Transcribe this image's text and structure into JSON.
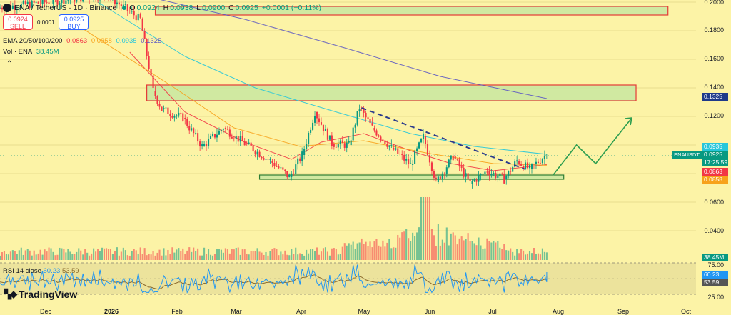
{
  "header": {
    "symbol": "ENA / TetherUS · 1D · Binance",
    "open_label": "O",
    "open": "0.0924",
    "high_label": "H",
    "high": "0.0938",
    "low_label": "L",
    "low": "0.0900",
    "close_label": "C",
    "close": "0.0925",
    "change": "+0.0001 (+0.11%)"
  },
  "trade": {
    "sell_price": "0.0924",
    "sell_label": "SELL",
    "spread": "0.0001",
    "buy_price": "0.0925",
    "buy_label": "BUY"
  },
  "ema": {
    "label": "EMA 20/50/100/200",
    "v20": "0.0863",
    "v50": "0.0858",
    "v100": "0.0935",
    "v200": "0.1325"
  },
  "vol": {
    "label": "Vol · ENA",
    "value": "38.45M"
  },
  "rsi": {
    "label": "RSI 14 close",
    "value": "60.23",
    "ma": "53.59"
  },
  "brand": {
    "name": "TradingView"
  },
  "price_axis": {
    "ticks": [
      "0.2000",
      "0.1800",
      "0.1600",
      "0.1400",
      "0.1200",
      "0.0600",
      "0.0400"
    ],
    "badges": {
      "ema100": "0.0935",
      "symbol": "ENAUSDT",
      "last": "0.0925",
      "countdown": "17:25:59",
      "ema20": "0.0863",
      "ema50": "0.0858",
      "vol": "38.45M"
    }
  },
  "rsi_axis": {
    "ticks": [
      "75.00",
      "25.00"
    ],
    "badge_rsi": "60.23",
    "badge_ma": "53.59"
  },
  "time_axis": [
    "Dec",
    "2026",
    "Feb",
    "Mar",
    "Apr",
    "May",
    "Jun",
    "Jul",
    "Aug",
    "Sep",
    "Oct"
  ],
  "colors": {
    "background": "#fcf3a6",
    "up": "#089981",
    "down": "#f23645",
    "ema20": "#f23645",
    "ema50": "#f7a21b",
    "ema100": "#26c6da",
    "ema200": "#5b56c4",
    "zone_fill": "#c8e6a0",
    "zone_border": "#e53935",
    "support_border": "#2e7d32",
    "trendline": "#2a3a8c",
    "projection": "#2e9e4f",
    "rsi_line": "#2196f3",
    "rsi_ma": "#8b6b2e"
  },
  "chart_data": {
    "type": "candlestick",
    "title": "ENA / TetherUS · 1D · Binance",
    "price_range": [
      0.03,
      0.2
    ],
    "x_range": [
      "2025-11-20",
      "2026-10-05"
    ],
    "key_points": [
      {
        "date": "2025-11-20",
        "price": 0.196
      },
      {
        "date": "2026-01-10",
        "price": 0.205
      },
      {
        "date": "2026-01-26",
        "price": 0.188
      },
      {
        "date": "2026-02-01",
        "price": 0.138
      },
      {
        "date": "2026-02-05",
        "price": 0.125
      },
      {
        "date": "2026-02-15",
        "price": 0.119
      },
      {
        "date": "2026-02-24",
        "price": 0.099
      },
      {
        "date": "2026-03-06",
        "price": 0.112
      },
      {
        "date": "2026-03-16",
        "price": 0.101
      },
      {
        "date": "2026-03-28",
        "price": 0.089
      },
      {
        "date": "2026-04-06",
        "price": 0.0775
      },
      {
        "date": "2026-04-12",
        "price": 0.093
      },
      {
        "date": "2026-04-18",
        "price": 0.123
      },
      {
        "date": "2026-04-26",
        "price": 0.101
      },
      {
        "date": "2026-05-04",
        "price": 0.1
      },
      {
        "date": "2026-05-09",
        "price": 0.126
      },
      {
        "date": "2026-05-15",
        "price": 0.112
      },
      {
        "date": "2026-05-24",
        "price": 0.098
      },
      {
        "date": "2026-06-02",
        "price": 0.086
      },
      {
        "date": "2026-06-08",
        "price": 0.106
      },
      {
        "date": "2026-06-14",
        "price": 0.074
      },
      {
        "date": "2026-06-22",
        "price": 0.092
      },
      {
        "date": "2026-06-30",
        "price": 0.073
      },
      {
        "date": "2026-07-08",
        "price": 0.082
      },
      {
        "date": "2026-07-16",
        "price": 0.076
      },
      {
        "date": "2026-07-22",
        "price": 0.089
      },
      {
        "date": "2026-07-28",
        "price": 0.083
      },
      {
        "date": "2026-08-04",
        "price": 0.0925
      }
    ],
    "ema_lines": {
      "ema20": [
        [
          "2026-01-20",
          0.165
        ],
        [
          "2026-02-15",
          0.123
        ],
        [
          "2026-03-15",
          0.102
        ],
        [
          "2026-04-06",
          0.09
        ],
        [
          "2026-04-20",
          0.102
        ],
        [
          "2026-05-10",
          0.108
        ],
        [
          "2026-06-01",
          0.096
        ],
        [
          "2026-06-20",
          0.087
        ],
        [
          "2026-07-10",
          0.082
        ],
        [
          "2026-08-04",
          0.0863
        ]
      ],
      "ema50": [
        [
          "2025-12-20",
          0.19
        ],
        [
          "2026-02-10",
          0.14
        ],
        [
          "2026-03-10",
          0.112
        ],
        [
          "2026-04-10",
          0.099
        ],
        [
          "2026-05-10",
          0.103
        ],
        [
          "2026-06-10",
          0.094
        ],
        [
          "2026-07-10",
          0.087
        ],
        [
          "2026-08-04",
          0.0858
        ]
      ],
      "ema100": [
        [
          "2026-01-05",
          0.2
        ],
        [
          "2026-02-15",
          0.162
        ],
        [
          "2026-03-20",
          0.14
        ],
        [
          "2026-04-25",
          0.124
        ],
        [
          "2026-06-01",
          0.108
        ],
        [
          "2026-07-01",
          0.099
        ],
        [
          "2026-08-04",
          0.0935
        ]
      ],
      "ema200": [
        [
          "2026-01-25",
          0.205
        ],
        [
          "2026-03-15",
          0.188
        ],
        [
          "2026-05-01",
          0.168
        ],
        [
          "2026-06-15",
          0.148
        ],
        [
          "2026-08-04",
          0.1325
        ]
      ]
    },
    "zones": [
      {
        "name": "upper resistance",
        "from_date": "2026-02-01",
        "to_date": "2026-09-30",
        "low": 0.191,
        "high": 0.197
      },
      {
        "name": "middle resistance",
        "from_date": "2026-01-28",
        "to_date": "2026-09-15",
        "low": 0.131,
        "high": 0.142
      },
      {
        "name": "support",
        "from_date": "2026-03-22",
        "to_date": "2026-08-12",
        "low": 0.076,
        "high": 0.079
      }
    ],
    "trendline": [
      [
        "2026-05-09",
        0.126
      ],
      [
        "2026-07-25",
        0.083
      ]
    ],
    "projection": [
      [
        "2026-08-07",
        0.079
      ],
      [
        "2026-08-18",
        0.1
      ],
      [
        "2026-08-27",
        0.087
      ],
      [
        "2026-09-13",
        0.119
      ]
    ],
    "volume": {
      "last": "38.45M",
      "peak_date": "2026-06-08"
    },
    "rsi": {
      "value": 60.23,
      "ma": 53.59,
      "upper_band": 75,
      "lower_band": 25
    }
  }
}
